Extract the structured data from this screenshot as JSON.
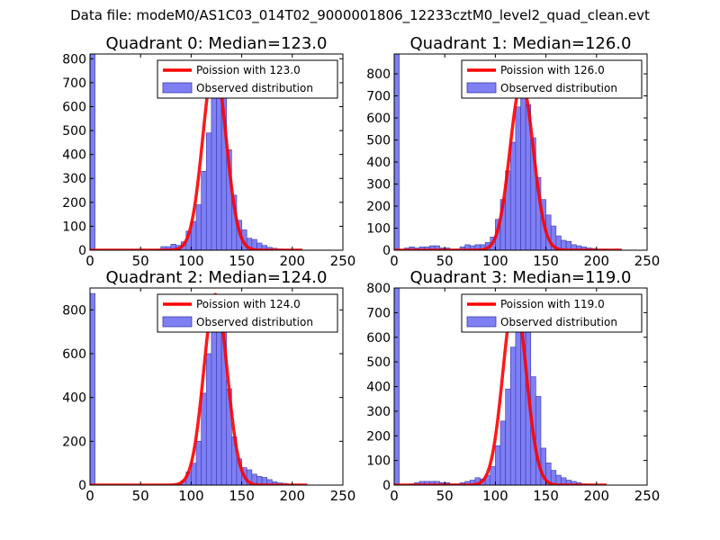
{
  "suptitle": "Data file: modeM0/AS1C03_014T02_9000001806_12233cztM0_level2_quad_clean.evt",
  "colors": {
    "bar_fill": "#7f7ff5",
    "bar_edge": "#3a3aa8",
    "curve": "#ff0000",
    "frame": "#000000",
    "background": "#ffffff"
  },
  "chart_data": [
    {
      "type": "bar",
      "title": "Quadrant 0: Median=123.0",
      "xlim": [
        0,
        250
      ],
      "ylim": [
        0,
        820
      ],
      "xticks": [
        "0",
        "50",
        "100",
        "150",
        "200",
        "250"
      ],
      "yticks": [
        "0",
        "100",
        "200",
        "300",
        "400",
        "500",
        "600",
        "700",
        "800"
      ],
      "ytick_values": [
        0,
        100,
        200,
        300,
        400,
        500,
        600,
        700,
        800
      ],
      "legend": {
        "position": "top-right",
        "entries": [
          "Poission with 123.0",
          "Observed distribution"
        ]
      },
      "poisson_mean": 123.0,
      "poisson_peak": 780,
      "poisson_sigma": 11.5,
      "curve_range": [
        0,
        210
      ],
      "bin_width": 5,
      "bins": [
        0,
        60,
        65,
        70,
        75,
        80,
        85,
        90,
        95,
        100,
        105,
        110,
        115,
        120,
        125,
        130,
        135,
        140,
        145,
        150,
        155,
        160,
        165,
        170,
        175,
        180,
        185,
        190,
        195,
        200,
        205
      ],
      "values": [
        820,
        0,
        3,
        15,
        15,
        25,
        20,
        35,
        80,
        120,
        190,
        330,
        490,
        690,
        725,
        640,
        420,
        230,
        125,
        85,
        50,
        45,
        30,
        20,
        12,
        8,
        5,
        3,
        2,
        1,
        1
      ]
    },
    {
      "type": "bar",
      "title": "Quadrant 1: Median=126.0",
      "xlim": [
        0,
        250
      ],
      "ylim": [
        0,
        890
      ],
      "xticks": [
        "0",
        "50",
        "100",
        "150",
        "200",
        "250"
      ],
      "yticks": [
        "0",
        "100",
        "200",
        "300",
        "400",
        "500",
        "600",
        "700",
        "800"
      ],
      "ytick_values": [
        0,
        100,
        200,
        300,
        400,
        500,
        600,
        700,
        800
      ],
      "legend": {
        "position": "top-right",
        "entries": [
          "Poission with 126.0",
          "Observed distribution"
        ]
      },
      "poisson_mean": 126.0,
      "poisson_peak": 760,
      "poisson_sigma": 11.5,
      "curve_range": [
        0,
        225
      ],
      "bin_width": 5,
      "bins": [
        0,
        5,
        10,
        15,
        20,
        25,
        30,
        35,
        40,
        45,
        50,
        55,
        60,
        65,
        70,
        75,
        80,
        85,
        90,
        95,
        100,
        105,
        110,
        115,
        120,
        125,
        130,
        135,
        140,
        145,
        150,
        155,
        160,
        165,
        170,
        175,
        180,
        185,
        190,
        195,
        200,
        205,
        210,
        215,
        220
      ],
      "values": [
        890,
        0,
        10,
        15,
        10,
        15,
        15,
        20,
        20,
        10,
        10,
        5,
        5,
        15,
        25,
        20,
        25,
        25,
        35,
        60,
        140,
        230,
        360,
        490,
        650,
        740,
        660,
        510,
        330,
        230,
        160,
        110,
        65,
        45,
        40,
        25,
        20,
        15,
        10,
        8,
        5,
        3,
        2,
        1,
        1
      ]
    },
    {
      "type": "bar",
      "title": "Quadrant 2: Median=124.0",
      "xlim": [
        0,
        250
      ],
      "ylim": [
        0,
        900
      ],
      "xticks": [
        "0",
        "50",
        "100",
        "150",
        "200",
        "250"
      ],
      "yticks": [
        "0",
        "200",
        "400",
        "600",
        "800"
      ],
      "ytick_values": [
        0,
        200,
        400,
        600,
        800
      ],
      "legend": {
        "position": "top-right",
        "entries": [
          "Poission with 124.0",
          "Observed distribution"
        ]
      },
      "poisson_mean": 124.0,
      "poisson_peak": 870,
      "poisson_sigma": 11.5,
      "curve_range": [
        0,
        215
      ],
      "bin_width": 5,
      "bins": [
        0,
        85,
        90,
        95,
        100,
        105,
        110,
        115,
        120,
        125,
        130,
        135,
        140,
        145,
        150,
        155,
        160,
        165,
        170,
        175,
        180,
        185,
        190,
        195,
        200,
        205,
        210
      ],
      "values": [
        875,
        5,
        20,
        60,
        100,
        200,
        420,
        600,
        740,
        850,
        720,
        440,
        220,
        120,
        80,
        70,
        50,
        40,
        35,
        25,
        15,
        10,
        8,
        5,
        3,
        2,
        1
      ]
    },
    {
      "type": "bar",
      "title": "Quadrant 3: Median=119.0",
      "xlim": [
        0,
        250
      ],
      "ylim": [
        0,
        800
      ],
      "xticks": [
        "0",
        "50",
        "100",
        "150",
        "200",
        "250"
      ],
      "yticks": [
        "0",
        "100",
        "200",
        "300",
        "400",
        "500",
        "600",
        "700",
        "800"
      ],
      "ytick_values": [
        0,
        100,
        200,
        300,
        400,
        500,
        600,
        700,
        800
      ],
      "legend": {
        "position": "top-right",
        "entries": [
          "Poission with 119.0",
          "Observed distribution"
        ]
      },
      "poisson_mean": 119.0,
      "poisson_peak": 760,
      "poisson_sigma": 11.5,
      "curve_range": [
        0,
        210
      ],
      "bin_width": 5,
      "bins": [
        0,
        5,
        10,
        15,
        20,
        25,
        30,
        35,
        40,
        45,
        50,
        55,
        60,
        65,
        70,
        75,
        80,
        85,
        90,
        95,
        100,
        105,
        110,
        115,
        120,
        125,
        130,
        135,
        140,
        145,
        150,
        155,
        160,
        165,
        170,
        175,
        180,
        185,
        190,
        195,
        200
      ],
      "values": [
        800,
        0,
        0,
        5,
        10,
        15,
        15,
        15,
        15,
        10,
        10,
        5,
        5,
        10,
        15,
        20,
        30,
        25,
        40,
        75,
        160,
        260,
        390,
        560,
        700,
        740,
        650,
        440,
        360,
        150,
        90,
        60,
        40,
        30,
        20,
        15,
        10,
        5,
        3,
        2,
        1
      ]
    }
  ]
}
